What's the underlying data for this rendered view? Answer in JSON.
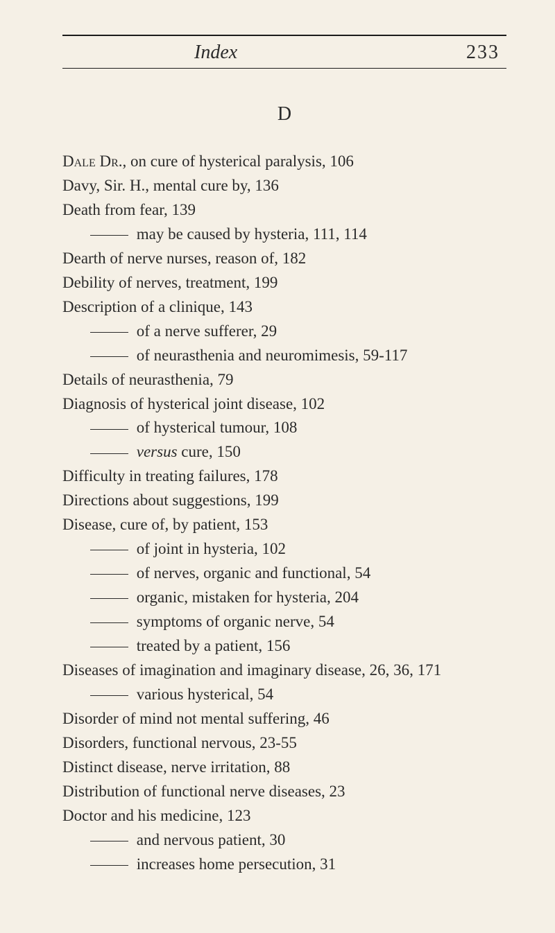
{
  "header": {
    "title": "Index",
    "page_number": "233"
  },
  "section_letter": "D",
  "entries": [
    {
      "type": "main",
      "smallcaps_prefix": "Dale Dr.",
      "text_after": ", on cure of hysterical paralysis, 106"
    },
    {
      "type": "main",
      "text": "Davy, Sir. H., mental cure by, 136"
    },
    {
      "type": "main",
      "text": "Death from fear, 139"
    },
    {
      "type": "sub",
      "text": "may be caused by hysteria, 111, 114"
    },
    {
      "type": "main",
      "text": "Dearth of nerve nurses, reason of, 182"
    },
    {
      "type": "main",
      "text": "Debility of nerves, treatment, 199"
    },
    {
      "type": "main",
      "text": "Description of a clinique, 143"
    },
    {
      "type": "sub",
      "text": "of a nerve sufferer, 29"
    },
    {
      "type": "sub",
      "text": "of neurasthenia and neuromimesis, 59-117"
    },
    {
      "type": "main",
      "text": "Details of neurasthenia, 79"
    },
    {
      "type": "main",
      "text": "Diagnosis of hysterical joint disease, 102"
    },
    {
      "type": "sub",
      "text": "of hysterical tumour, 108"
    },
    {
      "type": "sub",
      "italic_prefix": "versus",
      "text_after": " cure, 150"
    },
    {
      "type": "main",
      "text": "Difficulty in treating failures, 178"
    },
    {
      "type": "main",
      "text": "Directions about suggestions, 199"
    },
    {
      "type": "main",
      "text": "Disease, cure of, by patient, 153"
    },
    {
      "type": "sub",
      "text": "of joint in hysteria, 102"
    },
    {
      "type": "sub",
      "text": "of nerves, organic and functional, 54"
    },
    {
      "type": "sub",
      "text": "organic, mistaken for hysteria, 204"
    },
    {
      "type": "sub",
      "text": "symptoms of organic nerve, 54"
    },
    {
      "type": "sub",
      "text": "treated by a patient, 156"
    },
    {
      "type": "main",
      "text": "Diseases of imagination and imaginary disease, 26, 36, 171"
    },
    {
      "type": "sub",
      "text": "various hysterical, 54"
    },
    {
      "type": "main",
      "text": "Disorder of mind not mental suffering, 46"
    },
    {
      "type": "main",
      "text": "Disorders, functional nervous, 23-55"
    },
    {
      "type": "main",
      "text": "Distinct disease, nerve irritation, 88"
    },
    {
      "type": "main",
      "text": "Distribution of functional nerve diseases, 23"
    },
    {
      "type": "main",
      "text": "Doctor and his medicine, 123"
    },
    {
      "type": "sub",
      "text": "and nervous patient, 30"
    },
    {
      "type": "sub",
      "text": "increases home persecution, 31"
    }
  ],
  "styling": {
    "background_color": "#f5f0e6",
    "text_color": "#2a2a2a",
    "rule_color": "#1a1a1a",
    "header_title_fontsize": 28,
    "page_number_fontsize": 28,
    "section_letter_fontsize": 28,
    "body_fontsize": 23,
    "line_height": 1.52,
    "font_family": "Georgia, Times New Roman, serif"
  }
}
